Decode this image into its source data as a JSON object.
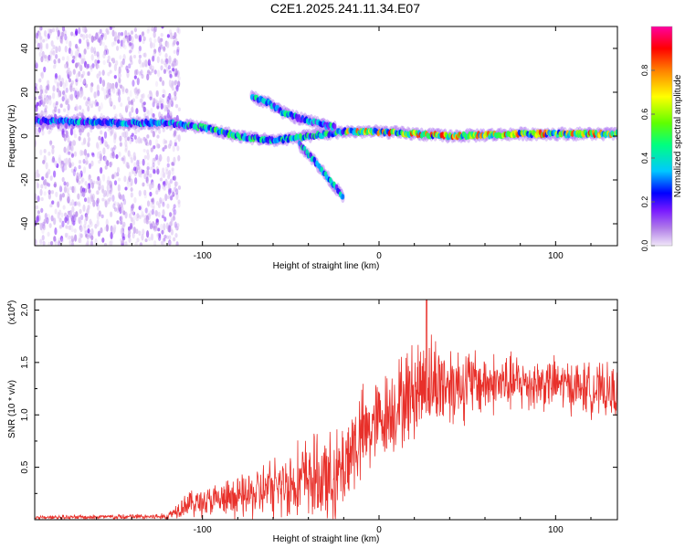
{
  "title": "C2E1.2025.241.11.34.E07",
  "chart_data": [
    {
      "type": "heatmap",
      "name": "spectrogram",
      "xlabel": "Height of straight line (km)",
      "ylabel": "Frequency (Hz)",
      "xlim": [
        -195,
        135
      ],
      "ylim": [
        -50,
        50
      ],
      "xticks": [
        -100,
        0,
        100
      ],
      "yticks": [
        -40,
        -20,
        0,
        20,
        40
      ],
      "colorbar": {
        "label": "Normalized spectral amplitude",
        "range": [
          0,
          1
        ],
        "ticks": [
          0.0,
          0.2,
          0.4,
          0.6,
          0.8
        ],
        "tick_labels": [
          "0.0",
          "0.2",
          "0.4",
          "0.6",
          "0.8"
        ],
        "colors": [
          "#f0e6f8",
          "#b07ce8",
          "#7a1aff",
          "#0000ff",
          "#00c8ff",
          "#00ff80",
          "#60ff00",
          "#ffff00",
          "#ff8000",
          "#ff0000",
          "#ff00a0"
        ]
      },
      "ridges": [
        {
          "name": "main-band",
          "points": [
            [
              -195,
              7
            ],
            [
              -150,
              6
            ],
            [
              -120,
              6
            ],
            [
              -100,
              4
            ],
            [
              -80,
              0
            ],
            [
              -60,
              -2
            ],
            [
              -40,
              0
            ],
            [
              -20,
              2
            ],
            [
              0,
              2
            ],
            [
              40,
              0
            ],
            [
              80,
              1
            ],
            [
              135,
              1
            ]
          ]
        },
        {
          "name": "upper-branch",
          "points": [
            [
              -72,
              18
            ],
            [
              -62,
              15
            ],
            [
              -55,
              11
            ],
            [
              -45,
              8
            ],
            [
              -35,
              6
            ],
            [
              -25,
              4
            ]
          ]
        },
        {
          "name": "lower-branch",
          "points": [
            [
              -45,
              -4
            ],
            [
              -38,
              -10
            ],
            [
              -32,
              -16
            ],
            [
              -26,
              -22
            ],
            [
              -20,
              -28
            ]
          ]
        }
      ]
    },
    {
      "type": "line",
      "name": "snr",
      "xlabel": "Height of straight line (km)",
      "ylabel": "SNR (10 * v/v)",
      "y_multiplier": "(x10",
      "y_multiplier_exp": "4",
      "y_multiplier_close": ")",
      "xlim": [
        -195,
        135
      ],
      "ylim": [
        0,
        2.1
      ],
      "xticks": [
        -100,
        0,
        100
      ],
      "yticks": [
        0.5,
        1.0,
        1.5,
        2.0
      ],
      "ytick_labels": [
        "0.5",
        "1.0",
        "1.5",
        "2.0"
      ],
      "color": "#e8302a",
      "envelope": [
        {
          "x": -195,
          "base": 0.02,
          "amp": 0.02
        },
        {
          "x": -120,
          "base": 0.03,
          "amp": 0.03
        },
        {
          "x": -110,
          "base": 0.15,
          "amp": 0.12
        },
        {
          "x": -80,
          "base": 0.2,
          "amp": 0.2
        },
        {
          "x": -60,
          "base": 0.3,
          "amp": 0.3
        },
        {
          "x": -40,
          "base": 0.4,
          "amp": 0.4
        },
        {
          "x": -25,
          "base": 0.35,
          "amp": 0.45
        },
        {
          "x": -15,
          "base": 0.7,
          "amp": 0.5
        },
        {
          "x": 0,
          "base": 0.95,
          "amp": 0.4
        },
        {
          "x": 25,
          "base": 1.3,
          "amp": 0.5
        },
        {
          "x": 60,
          "base": 1.3,
          "amp": 0.3
        },
        {
          "x": 100,
          "base": 1.3,
          "amp": 0.25
        },
        {
          "x": 135,
          "base": 1.2,
          "amp": 0.25
        }
      ],
      "peak": {
        "x": 27,
        "y": 2.1
      }
    }
  ]
}
